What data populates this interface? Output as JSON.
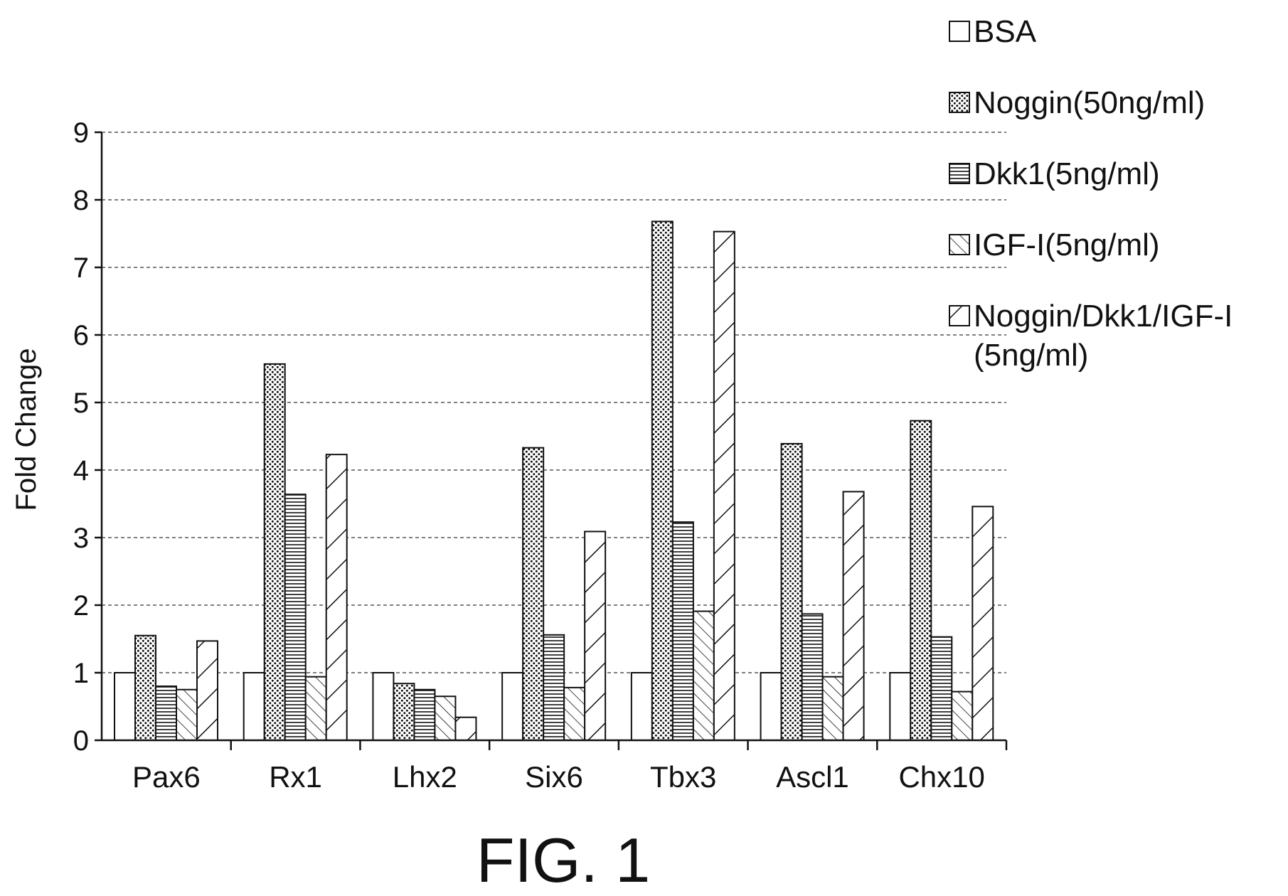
{
  "chart_data": {
    "type": "bar",
    "categories": [
      "Pax6",
      "Rx1",
      "Lhx2",
      "Six6",
      "Tbx3",
      "Ascl1",
      "Chx10"
    ],
    "series": [
      {
        "name": "BSA",
        "pattern": "none",
        "values": [
          1,
          1,
          1,
          1,
          1,
          1,
          1
        ]
      },
      {
        "name": "Noggin(50ng/ml)",
        "pattern": "dots",
        "values": [
          1.55,
          5.57,
          0.84,
          4.33,
          7.68,
          4.39,
          4.73
        ]
      },
      {
        "name": "Dkk1(5ng/ml)",
        "pattern": "horizontal",
        "values": [
          0.8,
          3.64,
          0.75,
          1.56,
          3.23,
          1.87,
          1.53
        ]
      },
      {
        "name": "IGF-I(5ng/ml)",
        "pattern": "back-diagonal",
        "values": [
          0.75,
          0.94,
          0.65,
          0.78,
          1.91,
          0.94,
          0.72
        ]
      },
      {
        "name": "Noggin/Dkk1/IGF-I",
        "name_line2": "(5ng/ml)",
        "pattern": "forward-diagonal",
        "values": [
          1.47,
          4.23,
          0.34,
          3.09,
          7.53,
          3.68,
          3.46
        ]
      }
    ],
    "xlabel": "",
    "ylabel": "Fold Change",
    "ylim": [
      0,
      9
    ],
    "yticks": [
      0,
      1,
      2,
      3,
      4,
      5,
      6,
      7,
      8,
      9
    ],
    "grid": "dashed horizontal",
    "legend_position": "top-right",
    "caption": "FIG. 1"
  }
}
